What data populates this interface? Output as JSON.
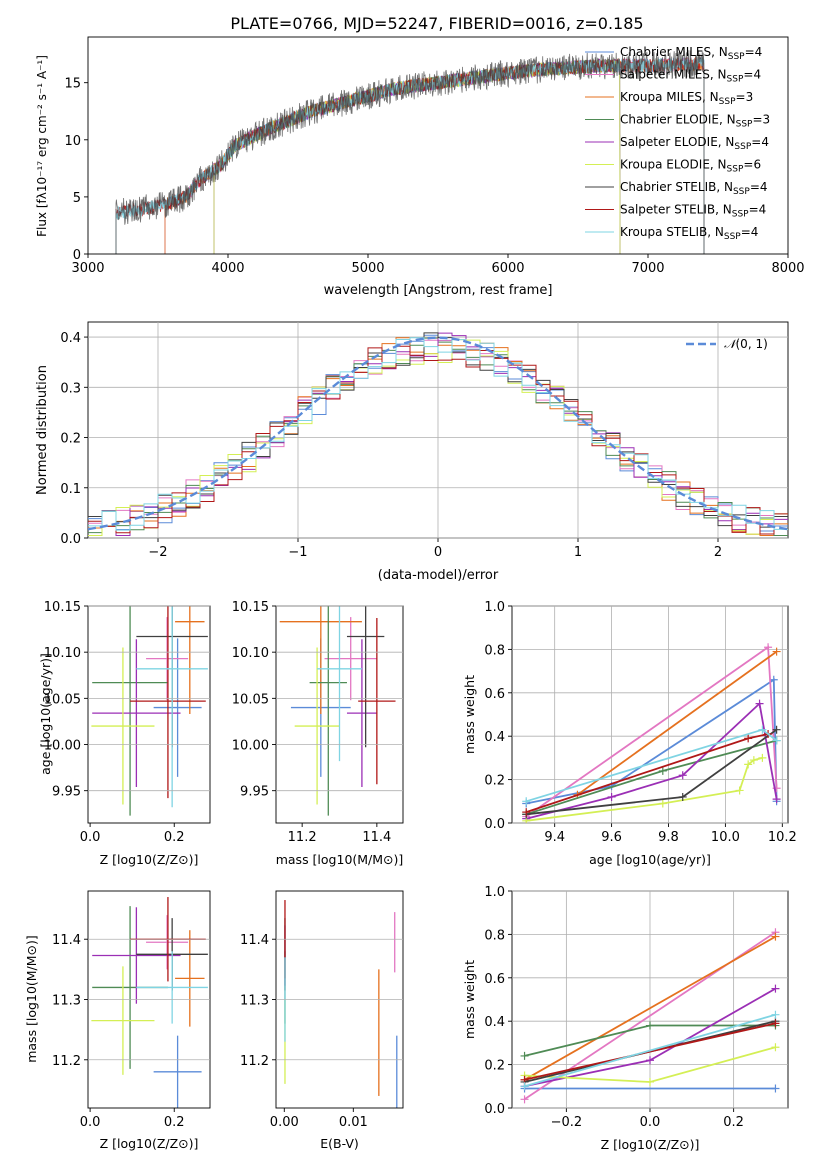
{
  "title": "PLATE=0766, MJD=52247, FIBERID=0016, z=0.185",
  "colors": {
    "Chabrier MILES": "#5b8bd8",
    "Salpeter MILES": "#e377c2",
    "Kroupa MILES": "#e5711f",
    "Chabrier ELODIE": "#4f8b55",
    "Salpeter ELODIE": "#9b2fb5",
    "Kroupa ELODIE": "#d4ef55",
    "Chabrier STELIB": "#404040",
    "Salpeter STELIB": "#b01818",
    "Kroupa STELIB": "#7fd4e3",
    "normal": "#5b8bd8"
  },
  "chart_data": [
    {
      "type": "line",
      "xlabel": "wavelength [Angstrom, rest frame]",
      "ylabel": "Flux [fλ10⁻¹⁷ erg cm⁻² s⁻¹ A⁻¹]",
      "xlim": [
        3000,
        8000
      ],
      "ylim": [
        0,
        19
      ],
      "xticks": [
        "3000",
        "4000",
        "5000",
        "6000",
        "7000",
        "8000"
      ],
      "yticks": [
        "0",
        "5",
        "10",
        "15"
      ],
      "grid": false,
      "legend": "right",
      "spectrum_continuum": {
        "x": [
          3200,
          3400,
          3550,
          3700,
          3800,
          3950,
          4050,
          4300,
          4600,
          4900,
          5200,
          5500,
          5800,
          6100,
          6400,
          6700,
          7000,
          7400
        ],
        "y": [
          3.6,
          4.0,
          4.3,
          5.0,
          6.5,
          7.8,
          9.5,
          11.0,
          12.5,
          13.5,
          14.5,
          15.0,
          15.5,
          16.0,
          16.3,
          16.5,
          16.5,
          16.7
        ]
      },
      "series": [
        {
          "name": "Chabrier MILES, N$_{SSP}$=4",
          "label_main": "Chabrier MILES, N",
          "label_sub": "SSP",
          "label_tail": "=4",
          "xmin": 3550,
          "xmax": 7400
        },
        {
          "name": "Salpeter MILES, N$_{SSP}$=4",
          "label_main": "Salpeter MILES, N",
          "label_sub": "SSP",
          "label_tail": "=4",
          "xmin": 3550,
          "xmax": 7400
        },
        {
          "name": "Kroupa MILES, N$_{SSP}$=3",
          "label_main": "Kroupa MILES, N",
          "label_sub": "SSP",
          "label_tail": "=3",
          "xmin": 3550,
          "xmax": 7400
        },
        {
          "name": "Chabrier ELODIE, N$_{SSP}$=3",
          "label_main": "Chabrier ELODIE, N",
          "label_sub": "SSP",
          "label_tail": "=3",
          "xmin": 3900,
          "xmax": 6800
        },
        {
          "name": "Salpeter ELODIE, N$_{SSP}$=4",
          "label_main": "Salpeter ELODIE, N",
          "label_sub": "SSP",
          "label_tail": "=4",
          "xmin": 3900,
          "xmax": 6800
        },
        {
          "name": "Kroupa ELODIE, N$_{SSP}$=6",
          "label_main": "Kroupa ELODIE, N",
          "label_sub": "SSP",
          "label_tail": "=6",
          "xmin": 3900,
          "xmax": 6800
        },
        {
          "name": "Chabrier STELIB, N$_{SSP}$=4",
          "label_main": "Chabrier STELIB, N",
          "label_sub": "SSP",
          "label_tail": "=4",
          "xmin": 3200,
          "xmax": 7400
        },
        {
          "name": "Salpeter STELIB, N$_{SSP}$=4",
          "label_main": "Salpeter STELIB, N",
          "label_sub": "SSP",
          "label_tail": "=4",
          "xmin": 3200,
          "xmax": 7400
        },
        {
          "name": "Kroupa STELIB, N$_{SSP}$=4",
          "label_main": "Kroupa STELIB, N",
          "label_sub": "SSP",
          "label_tail": "=4",
          "xmin": 3200,
          "xmax": 7400
        }
      ]
    },
    {
      "type": "step",
      "xlabel": "(data-model)/error",
      "ylabel": "Normed distribution",
      "xlim": [
        -2.5,
        2.5
      ],
      "ylim": [
        0,
        0.43
      ],
      "xticks": [
        "−2",
        "−1",
        "0",
        "1",
        "2"
      ],
      "yticks": [
        "0.0",
        "0.1",
        "0.2",
        "0.3",
        "0.4"
      ],
      "grid": true,
      "legend": "top-right",
      "normal_label_main": "𝒩",
      "normal_label_tail": "(0, 1)",
      "bin_width": 0.1,
      "bin_start": -2.5
    },
    {
      "type": "errorbar",
      "xlabel": "Z [log10(Z/Z⊙)]",
      "ylabel": "age  [log10(age/yr)]",
      "xlim": [
        -0.005,
        0.285
      ],
      "ylim": [
        9.915,
        10.15
      ],
      "xticks": [
        "0.0",
        "0.2"
      ],
      "yticks": [
        "9.95",
        "10.00",
        "10.05",
        "10.10",
        "10.15"
      ],
      "points": [
        {
          "model": "Chabrier MILES",
          "x": 0.208,
          "xerr": 0.057,
          "y": 10.04,
          "yerr": 0.075
        },
        {
          "model": "Salpeter MILES",
          "x": 0.183,
          "xerr": 0.05,
          "y": 10.093,
          "yerr": 0.045
        },
        {
          "model": "Kroupa MILES",
          "x": 0.237,
          "xerr": 0.035,
          "y": 10.133,
          "yerr": 0.1
        },
        {
          "model": "Chabrier ELODIE",
          "x": 0.095,
          "xerr": 0.09,
          "y": 10.067,
          "yerr": 0.144
        },
        {
          "model": "Salpeter ELODIE",
          "x": 0.11,
          "xerr": 0.105,
          "y": 10.034,
          "yerr": 0.08
        },
        {
          "model": "Kroupa ELODIE",
          "x": 0.078,
          "xerr": 0.075,
          "y": 10.02,
          "yerr": 0.085
        },
        {
          "model": "Chabrier STELIB",
          "x": 0.195,
          "xerr": 0.085,
          "y": 10.117,
          "yerr": 0.12
        },
        {
          "model": "Salpeter STELIB",
          "x": 0.185,
          "xerr": 0.09,
          "y": 10.047,
          "yerr": 0.105
        },
        {
          "model": "Kroupa STELIB",
          "x": 0.195,
          "xerr": 0.085,
          "y": 10.082,
          "yerr": 0.15
        }
      ]
    },
    {
      "type": "errorbar",
      "xlabel": "mass [log10(M/M⊙)]",
      "xlim": [
        11.13,
        11.47
      ],
      "ylim": [
        9.915,
        10.15
      ],
      "xticks": [
        "11.2",
        "11.4"
      ],
      "yticks": [
        "9.95",
        "10.00",
        "10.05",
        "10.10",
        "10.15"
      ],
      "points": [
        {
          "model": "Chabrier MILES",
          "x": 11.25,
          "xerr": 0.08,
          "y": 10.04,
          "yerr": 0.075
        },
        {
          "model": "Salpeter MILES",
          "x": 11.33,
          "xerr": 0.07,
          "y": 10.093,
          "yerr": 0.045
        },
        {
          "model": "Kroupa MILES",
          "x": 11.25,
          "xerr": 0.11,
          "y": 10.133,
          "yerr": 0.1
        },
        {
          "model": "Chabrier ELODIE",
          "x": 11.27,
          "xerr": 0.05,
          "y": 10.067,
          "yerr": 0.144
        },
        {
          "model": "Salpeter ELODIE",
          "x": 11.36,
          "xerr": 0.04,
          "y": 10.034,
          "yerr": 0.08
        },
        {
          "model": "Kroupa ELODIE",
          "x": 11.24,
          "xerr": 0.06,
          "y": 10.02,
          "yerr": 0.085
        },
        {
          "model": "Chabrier STELIB",
          "x": 11.37,
          "xerr": 0.05,
          "y": 10.117,
          "yerr": 0.12
        },
        {
          "model": "Salpeter STELIB",
          "x": 11.4,
          "xerr": 0.05,
          "y": 10.047,
          "yerr": 0.09
        },
        {
          "model": "Kroupa STELIB",
          "x": 11.3,
          "xerr": 0.06,
          "y": 10.082,
          "yerr": 0.1
        }
      ]
    },
    {
      "type": "line",
      "xlabel": "age  [log10(age/yr)]",
      "ylabel": "mass weight",
      "xlim": [
        9.25,
        10.22
      ],
      "ylim": [
        0,
        1
      ],
      "xticks": [
        "9.4",
        "9.6",
        "9.8",
        "10.0",
        "10.2"
      ],
      "yticks": [
        "0.0",
        "0.2",
        "0.4",
        "0.6",
        "0.8",
        "1.0"
      ],
      "grid": true,
      "series": [
        {
          "model": "Chabrier MILES",
          "x": [
            9.3,
            9.6,
            10.17,
            10.18
          ],
          "y": [
            0.09,
            0.17,
            0.66,
            0.1
          ]
        },
        {
          "model": "Salpeter MILES",
          "x": [
            9.3,
            10.15,
            10.18
          ],
          "y": [
            0.03,
            0.81,
            0.16
          ]
        },
        {
          "model": "Kroupa MILES",
          "x": [
            9.48,
            10.18
          ],
          "y": [
            0.13,
            0.79
          ]
        },
        {
          "model": "Chabrier ELODIE",
          "x": [
            9.3,
            9.78,
            10.18
          ],
          "y": [
            0.04,
            0.24,
            0.38
          ]
        },
        {
          "model": "Salpeter ELODIE",
          "x": [
            9.3,
            9.6,
            9.85,
            10.12,
            10.18
          ],
          "y": [
            0.02,
            0.12,
            0.22,
            0.55,
            0.11
          ]
        },
        {
          "model": "Kroupa ELODIE",
          "x": [
            9.3,
            9.78,
            10.05,
            10.08,
            10.1,
            10.13
          ],
          "y": [
            0.01,
            0.09,
            0.15,
            0.27,
            0.29,
            0.3
          ]
        },
        {
          "model": "Chabrier STELIB",
          "x": [
            9.3,
            9.85,
            10.18
          ],
          "y": [
            0.04,
            0.12,
            0.43
          ]
        },
        {
          "model": "Salpeter STELIB",
          "x": [
            9.3,
            10.08,
            10.15
          ],
          "y": [
            0.05,
            0.39,
            0.41
          ]
        },
        {
          "model": "Kroupa STELIB",
          "x": [
            9.3,
            10.13,
            10.18
          ],
          "y": [
            0.1,
            0.43,
            0.38
          ]
        }
      ]
    },
    {
      "type": "errorbar",
      "xlabel": "Z [log10(Z/Z⊙)]",
      "ylabel": "mass [log10(M/M⊙)]",
      "xlim": [
        -0.005,
        0.285
      ],
      "ylim": [
        11.12,
        11.48
      ],
      "xticks": [
        "0.0",
        "0.2"
      ],
      "yticks": [
        "11.2",
        "11.3",
        "11.4"
      ],
      "points": [
        {
          "model": "Chabrier MILES",
          "x": 0.208,
          "xerr": 0.057,
          "y": 11.18,
          "yerr": 0.06
        },
        {
          "model": "Salpeter MILES",
          "x": 0.183,
          "xerr": 0.05,
          "y": 11.395,
          "yerr": 0.045
        },
        {
          "model": "Kroupa MILES",
          "x": 0.237,
          "xerr": 0.035,
          "y": 11.335,
          "yerr": 0.08
        },
        {
          "model": "Chabrier ELODIE",
          "x": 0.095,
          "xerr": 0.09,
          "y": 11.32,
          "yerr": 0.135
        },
        {
          "model": "Salpeter ELODIE",
          "x": 0.11,
          "xerr": 0.105,
          "y": 11.373,
          "yerr": 0.08
        },
        {
          "model": "Kroupa ELODIE",
          "x": 0.078,
          "xerr": 0.075,
          "y": 11.265,
          "yerr": 0.09
        },
        {
          "model": "Chabrier STELIB",
          "x": 0.195,
          "xerr": 0.085,
          "y": 11.375,
          "yerr": 0.06
        },
        {
          "model": "Salpeter STELIB",
          "x": 0.185,
          "xerr": 0.09,
          "y": 11.4,
          "yerr": 0.07
        },
        {
          "model": "Kroupa STELIB",
          "x": 0.195,
          "xerr": 0.085,
          "y": 11.32,
          "yerr": 0.06
        }
      ]
    },
    {
      "type": "errorbar",
      "xlabel": "E(B-V)",
      "xlim": [
        -0.0012,
        0.0172
      ],
      "ylim": [
        11.12,
        11.48
      ],
      "xticks": [
        "0.00",
        "0.01"
      ],
      "yticks": [
        "11.2",
        "11.3",
        "11.4"
      ],
      "points": [
        {
          "model": "Chabrier MILES",
          "x": 0.0163,
          "y": 11.18,
          "yerr": 0.06
        },
        {
          "model": "Salpeter MILES",
          "x": 0.016,
          "y": 11.395,
          "yerr": 0.05
        },
        {
          "model": "Kroupa MILES",
          "x": 0.0137,
          "y": 11.245,
          "yerr": 0.105
        },
        {
          "model": "Chabrier ELODIE",
          "x": 0.0001,
          "y": 11.32,
          "yerr": 0.06
        },
        {
          "model": "Salpeter ELODIE",
          "x": 0.0001,
          "y": 11.373,
          "yerr": 0.05
        },
        {
          "model": "Kroupa ELODIE",
          "x": 0.0001,
          "y": 11.23,
          "yerr": 0.07
        },
        {
          "model": "Chabrier STELIB",
          "x": 0.0001,
          "y": 11.375,
          "yerr": 0.06
        },
        {
          "model": "Salpeter STELIB",
          "x": 0.0001,
          "y": 11.4,
          "yerr": 0.065
        },
        {
          "model": "Kroupa STELIB",
          "x": 0.0001,
          "y": 11.3,
          "yerr": 0.07
        }
      ]
    },
    {
      "type": "line",
      "xlabel": "Z [log10(Z/Z⊙)]",
      "ylabel": "mass weight",
      "xlim": [
        -0.33,
        0.33
      ],
      "ylim": [
        0,
        1
      ],
      "xticks": [
        "−0.2",
        "0.0",
        "0.2"
      ],
      "yticks": [
        "0.0",
        "0.2",
        "0.4",
        "0.6",
        "0.8",
        "1.0"
      ],
      "grid": true,
      "series": [
        {
          "model": "Chabrier MILES",
          "x": [
            -0.3,
            0.3
          ],
          "y": [
            0.09,
            0.09
          ]
        },
        {
          "model": "Salpeter MILES",
          "x": [
            -0.3,
            0.3
          ],
          "y": [
            0.04,
            0.81
          ]
        },
        {
          "model": "Kroupa MILES",
          "x": [
            -0.3,
            0.3
          ],
          "y": [
            0.13,
            0.79
          ]
        },
        {
          "model": "Chabrier ELODIE",
          "x": [
            -0.3,
            0.0,
            0.3
          ],
          "y": [
            0.24,
            0.38,
            0.38
          ]
        },
        {
          "model": "Salpeter ELODIE",
          "x": [
            -0.3,
            0.0,
            0.3
          ],
          "y": [
            0.1,
            0.22,
            0.55
          ]
        },
        {
          "model": "Kroupa ELODIE",
          "x": [
            -0.3,
            0.0,
            0.3
          ],
          "y": [
            0.15,
            0.12,
            0.28
          ]
        },
        {
          "model": "Chabrier STELIB",
          "x": [
            -0.3,
            0.3
          ],
          "y": [
            0.12,
            0.4
          ]
        },
        {
          "model": "Salpeter STELIB",
          "x": [
            -0.3,
            0.3
          ],
          "y": [
            0.13,
            0.39
          ]
        },
        {
          "model": "Kroupa STELIB",
          "x": [
            -0.3,
            0.3
          ],
          "y": [
            0.1,
            0.43
          ]
        }
      ]
    }
  ]
}
